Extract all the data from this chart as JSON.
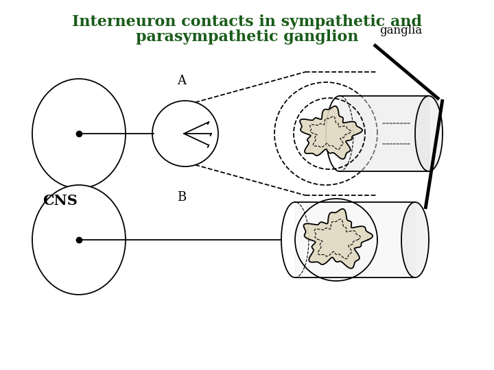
{
  "title_line1": "Interneuron contacts in sympathetic and",
  "title_line2": "parasympathetic ganglion",
  "title_color": "#1a5c1a",
  "title_fontsize": 16,
  "bg_color": "#ffffff",
  "label_A": "A",
  "label_B": "B",
  "label_CNS": "CNS",
  "label_ganglia": "ganglia",
  "line_color": "#000000",
  "dot_fill": "#dddddd",
  "ganglion_dot_fill": "#cccccc"
}
